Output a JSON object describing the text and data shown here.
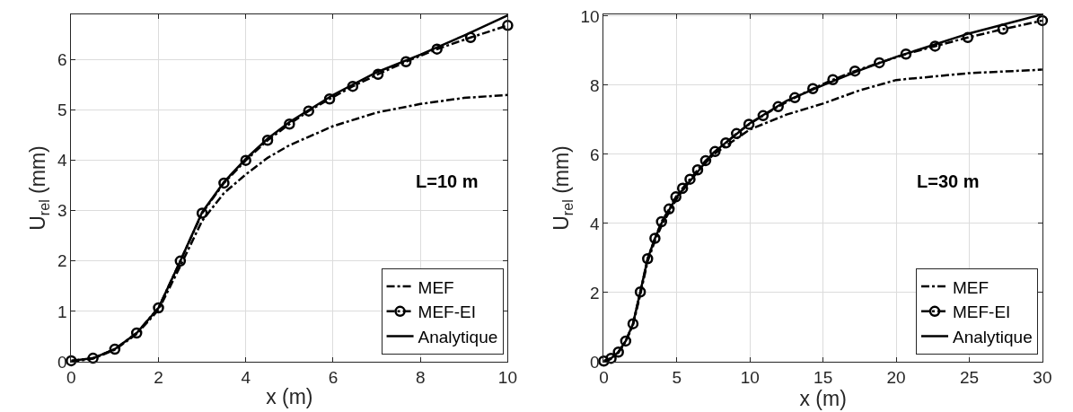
{
  "chart_data": [
    {
      "type": "line",
      "xlabel": "x (m)",
      "ylabel": "U$_{rel}$ (mm)",
      "annotations": [
        "L=10 m"
      ],
      "xlim": [
        0,
        10
      ],
      "xticks": [
        0,
        2,
        4,
        6,
        8,
        10
      ],
      "ylim": [
        0,
        6.9
      ],
      "yticks": [
        0,
        1,
        2,
        3,
        4,
        5,
        6
      ],
      "grid": true,
      "legend": "bottom right",
      "series": [
        {
          "name": "MEF",
          "color": "#000000",
          "line_style": "dashdot",
          "marker": "none",
          "x": [
            0,
            0.5,
            1,
            1.5,
            2,
            2.5,
            3,
            3.5,
            4,
            4.5,
            5,
            6,
            7,
            8,
            9,
            10
          ],
          "values": [
            0,
            0.06,
            0.24,
            0.55,
            1.03,
            1.9,
            2.8,
            3.35,
            3.72,
            4.05,
            4.3,
            4.68,
            4.95,
            5.12,
            5.24,
            5.3
          ]
        },
        {
          "name": "MEF-EI",
          "color": "#000000",
          "line_style": "dashdot",
          "marker": "circle",
          "x": [
            0,
            0.5,
            1,
            1.5,
            2,
            2.5,
            3,
            3.5,
            4,
            4.5,
            5,
            5.44,
            5.92,
            6.45,
            7.03,
            7.67,
            8.38,
            9.15,
            10
          ],
          "values": [
            0.02,
            0.07,
            0.25,
            0.57,
            1.07,
            2.0,
            2.95,
            3.55,
            4.0,
            4.4,
            4.72,
            4.98,
            5.22,
            5.47,
            5.71,
            5.96,
            6.21,
            6.44,
            6.68
          ]
        },
        {
          "name": "Analytique",
          "color": "#000000",
          "line_style": "solid",
          "marker": "none",
          "x": [
            0,
            0.5,
            1,
            1.5,
            2,
            2.5,
            3,
            3.5,
            4,
            4.5,
            5,
            6,
            7,
            8,
            9,
            10
          ],
          "values": [
            0.02,
            0.07,
            0.25,
            0.57,
            1.07,
            2.0,
            2.97,
            3.57,
            4.03,
            4.43,
            4.76,
            5.3,
            5.75,
            6.1,
            6.48,
            6.88
          ]
        }
      ]
    },
    {
      "type": "line",
      "xlabel": "x (m)",
      "ylabel": "U$_{rel}$ (mm)",
      "annotations": [
        "L=30 m"
      ],
      "xlim": [
        0,
        30
      ],
      "xticks": [
        0,
        5,
        10,
        15,
        20,
        25,
        30
      ],
      "ylim": [
        0,
        10.05
      ],
      "yticks": [
        0,
        2,
        4,
        6,
        8,
        10
      ],
      "grid": true,
      "legend": "bottom right",
      "series": [
        {
          "name": "MEF",
          "color": "#000000",
          "line_style": "dashdot",
          "marker": "none",
          "x": [
            0,
            0.5,
            1,
            1.5,
            2,
            2.5,
            3,
            3.5,
            4,
            5,
            6,
            7.5,
            10,
            12.5,
            15,
            17.5,
            20,
            25,
            30
          ],
          "values": [
            0,
            0.08,
            0.26,
            0.58,
            1.06,
            1.95,
            2.9,
            3.5,
            3.98,
            4.72,
            5.3,
            6.0,
            6.72,
            7.15,
            7.47,
            7.85,
            8.15,
            8.35,
            8.45
          ]
        },
        {
          "name": "MEF-EI",
          "color": "#000000",
          "line_style": "dashdot",
          "marker": "circle",
          "x": [
            0,
            0.5,
            1,
            1.5,
            2,
            2.5,
            3,
            3.5,
            3.95,
            4.47,
            4.93,
            5.39,
            5.9,
            6.42,
            6.97,
            7.61,
            8.35,
            9.08,
            9.93,
            10.9,
            11.93,
            13.07,
            14.3,
            15.67,
            17.18,
            18.85,
            20.67,
            22.66,
            24.9,
            27.3,
            30
          ],
          "values": [
            0.02,
            0.1,
            0.28,
            0.6,
            1.1,
            2.02,
            2.98,
            3.57,
            4.05,
            4.42,
            4.77,
            5.02,
            5.28,
            5.55,
            5.82,
            6.08,
            6.33,
            6.6,
            6.87,
            7.12,
            7.38,
            7.64,
            7.9,
            8.16,
            8.41,
            8.65,
            8.9,
            9.13,
            9.38,
            9.62,
            9.87
          ]
        },
        {
          "name": "Analytique",
          "color": "#000000",
          "line_style": "solid",
          "marker": "none",
          "x": [
            0,
            0.5,
            1,
            1.5,
            2,
            2.5,
            3,
            3.5,
            4,
            5,
            6,
            7.5,
            10,
            12.5,
            15,
            17.5,
            20,
            25,
            30
          ],
          "values": [
            0.02,
            0.1,
            0.28,
            0.6,
            1.1,
            2.02,
            2.98,
            3.57,
            4.05,
            4.77,
            5.28,
            6.05,
            6.9,
            7.55,
            8.0,
            8.43,
            8.82,
            9.5,
            10.05
          ]
        }
      ]
    }
  ]
}
